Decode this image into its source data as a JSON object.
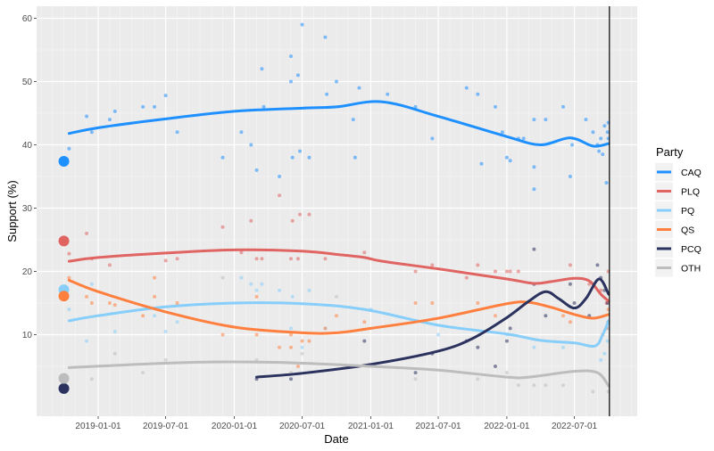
{
  "chart_data": {
    "type": "line",
    "xlabel": "Date",
    "ylabel": "Support (%)",
    "x_type": "date",
    "xlim": [
      "2018-07-20",
      "2022-12-17"
    ],
    "ylim": [
      -2.9,
      61.9
    ],
    "x_ticks": [
      "2019-01-01",
      "2019-07-01",
      "2020-01-01",
      "2020-07-01",
      "2021-01-01",
      "2021-07-01",
      "2022-01-01",
      "2022-07-01"
    ],
    "y_ticks": [
      10,
      20,
      30,
      40,
      50,
      60
    ],
    "grid": true,
    "legend": {
      "title": "Party",
      "position": "right"
    },
    "vline_date": "2022-10-03",
    "election_result_date": "2018-10-01",
    "series": [
      {
        "name": "CAQ",
        "color": "#1e90ff",
        "result": 37.4,
        "smooth": [
          [
            "2018-10-15",
            41.8
          ],
          [
            "2019-01-01",
            42.7
          ],
          [
            "2019-07-01",
            44.1
          ],
          [
            "2020-01-01",
            45.3
          ],
          [
            "2020-07-01",
            45.8
          ],
          [
            "2020-10-01",
            46.0
          ],
          [
            "2021-02-01",
            46.8
          ],
          [
            "2021-07-01",
            44.5
          ],
          [
            "2022-01-01",
            41.3
          ],
          [
            "2022-04-01",
            40.0
          ],
          [
            "2022-06-20",
            41.1
          ],
          [
            "2022-08-20",
            39.8
          ],
          [
            "2022-10-01",
            40.2
          ]
        ],
        "points": [
          [
            "2018-10-15",
            39.4
          ],
          [
            "2018-12-01",
            44.5
          ],
          [
            "2018-12-15",
            42
          ],
          [
            "2019-02-01",
            44
          ],
          [
            "2019-02-15",
            45.3
          ],
          [
            "2019-05-01",
            46
          ],
          [
            "2019-06-01",
            46
          ],
          [
            "2019-07-01",
            47.8
          ],
          [
            "2019-08-01",
            42
          ],
          [
            "2019-12-01",
            38
          ],
          [
            "2020-01-20",
            42
          ],
          [
            "2020-02-15",
            40
          ],
          [
            "2020-03-01",
            36
          ],
          [
            "2020-03-15",
            52
          ],
          [
            "2020-03-20",
            46
          ],
          [
            "2020-05-01",
            35
          ],
          [
            "2020-06-01",
            54
          ],
          [
            "2020-06-01",
            50
          ],
          [
            "2020-06-05",
            38
          ],
          [
            "2020-06-20",
            51
          ],
          [
            "2020-06-25",
            39
          ],
          [
            "2020-07-01",
            59
          ],
          [
            "2020-07-20",
            38
          ],
          [
            "2020-09-01",
            57
          ],
          [
            "2020-09-05",
            48
          ],
          [
            "2020-10-01",
            50
          ],
          [
            "2020-11-15",
            44
          ],
          [
            "2020-11-20",
            38
          ],
          [
            "2020-12-01",
            49
          ],
          [
            "2021-02-15",
            48
          ],
          [
            "2021-05-01",
            46
          ],
          [
            "2021-06-15",
            41
          ],
          [
            "2021-09-15",
            49
          ],
          [
            "2021-10-15",
            48
          ],
          [
            "2021-10-25",
            37
          ],
          [
            "2021-12-01",
            46
          ],
          [
            "2021-12-20",
            42
          ],
          [
            "2022-01-01",
            38
          ],
          [
            "2022-01-10",
            37.5
          ],
          [
            "2022-02-01",
            41
          ],
          [
            "2022-02-15",
            41
          ],
          [
            "2022-03-15",
            44
          ],
          [
            "2022-03-15",
            36.5
          ],
          [
            "2022-03-15",
            33
          ],
          [
            "2022-04-15",
            44
          ],
          [
            "2022-06-01",
            46
          ],
          [
            "2022-06-20",
            35
          ],
          [
            "2022-06-25",
            40
          ],
          [
            "2022-08-01",
            44
          ],
          [
            "2022-08-20",
            42
          ],
          [
            "2022-09-01",
            40
          ],
          [
            "2022-09-05",
            39
          ],
          [
            "2022-09-10",
            41
          ],
          [
            "2022-09-15",
            38.5
          ],
          [
            "2022-09-20",
            43
          ],
          [
            "2022-09-25",
            34
          ],
          [
            "2022-09-28",
            42
          ],
          [
            "2022-09-30",
            43.5
          ],
          [
            "2022-09-30",
            41
          ]
        ]
      },
      {
        "name": "PLQ",
        "color": "#e06462",
        "result": 24.8,
        "smooth": [
          [
            "2018-10-15",
            21.6
          ],
          [
            "2019-01-01",
            22.2
          ],
          [
            "2019-07-01",
            22.9
          ],
          [
            "2020-01-01",
            23.4
          ],
          [
            "2020-07-01",
            23.2
          ],
          [
            "2020-10-15",
            22.6
          ],
          [
            "2020-12-15",
            22.2
          ],
          [
            "2021-02-01",
            21.6
          ],
          [
            "2021-07-01",
            20.4
          ],
          [
            "2022-01-01",
            18.8
          ],
          [
            "2022-03-15",
            18.1
          ],
          [
            "2022-05-01",
            18.4
          ],
          [
            "2022-07-01",
            18.9
          ],
          [
            "2022-08-10",
            18.5
          ],
          [
            "2022-09-10",
            16.4
          ],
          [
            "2022-10-01",
            15.3
          ]
        ],
        "points": [
          [
            "2018-10-15",
            22.8
          ],
          [
            "2018-12-01",
            26
          ],
          [
            "2018-12-15",
            22
          ],
          [
            "2019-02-01",
            21
          ],
          [
            "2019-07-01",
            21.7
          ],
          [
            "2019-08-01",
            22
          ],
          [
            "2019-12-01",
            27
          ],
          [
            "2020-01-20",
            23
          ],
          [
            "2020-02-15",
            28
          ],
          [
            "2020-03-01",
            22
          ],
          [
            "2020-03-15",
            22
          ],
          [
            "2020-05-01",
            32
          ],
          [
            "2020-06-01",
            22
          ],
          [
            "2020-06-05",
            28
          ],
          [
            "2020-06-20",
            22
          ],
          [
            "2020-07-20",
            29
          ],
          [
            "2020-06-25",
            29
          ],
          [
            "2020-09-01",
            22
          ],
          [
            "2020-12-15",
            23
          ],
          [
            "2021-05-01",
            20
          ],
          [
            "2021-06-15",
            21
          ],
          [
            "2021-09-15",
            19
          ],
          [
            "2021-10-15",
            21
          ],
          [
            "2021-12-01",
            20
          ],
          [
            "2022-01-01",
            20
          ],
          [
            "2022-01-10",
            20
          ],
          [
            "2022-02-01",
            20
          ],
          [
            "2022-06-20",
            21
          ],
          [
            "2022-08-10",
            18
          ],
          [
            "2022-09-10",
            17
          ],
          [
            "2022-09-25",
            15
          ],
          [
            "2022-09-30",
            20
          ]
        ]
      },
      {
        "name": "PQ",
        "color": "#87cefa",
        "result": 17.1,
        "smooth": [
          [
            "2018-10-15",
            12.2
          ],
          [
            "2019-01-01",
            13.0
          ],
          [
            "2019-07-01",
            14.4
          ],
          [
            "2020-01-01",
            15.0
          ],
          [
            "2020-07-01",
            14.9
          ],
          [
            "2020-12-15",
            14.0
          ],
          [
            "2021-07-01",
            11.5
          ],
          [
            "2022-01-01",
            10.1
          ],
          [
            "2022-04-01",
            9.1
          ],
          [
            "2022-07-01",
            8.7
          ],
          [
            "2022-08-25",
            8.2
          ],
          [
            "2022-09-15",
            10.0
          ],
          [
            "2022-10-01",
            12.2
          ]
        ],
        "points": [
          [
            "2018-10-15",
            14
          ],
          [
            "2018-12-01",
            9
          ],
          [
            "2018-12-15",
            18
          ],
          [
            "2019-02-15",
            10.5
          ],
          [
            "2019-06-01",
            13
          ],
          [
            "2019-07-01",
            10.5
          ],
          [
            "2019-08-01",
            12
          ],
          [
            "2020-01-20",
            19
          ],
          [
            "2020-02-15",
            18
          ],
          [
            "2020-03-01",
            17
          ],
          [
            "2020-03-15",
            18
          ],
          [
            "2020-05-01",
            17
          ],
          [
            "2020-06-01",
            11
          ],
          [
            "2020-06-05",
            16
          ],
          [
            "2020-07-01",
            8
          ],
          [
            "2020-07-20",
            17
          ],
          [
            "2020-09-01",
            11
          ],
          [
            "2021-01-01",
            14
          ],
          [
            "2021-07-01",
            10
          ],
          [
            "2022-01-01",
            10
          ],
          [
            "2022-03-15",
            8
          ],
          [
            "2022-06-01",
            8
          ],
          [
            "2022-09-10",
            6
          ],
          [
            "2022-09-20",
            7
          ],
          [
            "2022-09-28",
            9
          ],
          [
            "2022-09-30",
            11
          ]
        ]
      },
      {
        "name": "QS",
        "color": "#ff7f3f",
        "result": 16.1,
        "smooth": [
          [
            "2018-10-15",
            18.6
          ],
          [
            "2019-01-01",
            16.8
          ],
          [
            "2019-07-01",
            13.6
          ],
          [
            "2020-01-01",
            11.2
          ],
          [
            "2020-07-01",
            10.3
          ],
          [
            "2020-10-01",
            10.3
          ],
          [
            "2021-01-01",
            11.0
          ],
          [
            "2021-07-01",
            12.6
          ],
          [
            "2022-01-01",
            14.9
          ],
          [
            "2022-03-01",
            15.1
          ],
          [
            "2022-05-01",
            14.3
          ],
          [
            "2022-07-01",
            13.2
          ],
          [
            "2022-08-20",
            12.6
          ],
          [
            "2022-10-01",
            13.2
          ]
        ],
        "points": [
          [
            "2018-10-15",
            19
          ],
          [
            "2018-12-01",
            16
          ],
          [
            "2018-12-15",
            15
          ],
          [
            "2019-02-01",
            15
          ],
          [
            "2019-02-15",
            14.7
          ],
          [
            "2019-05-01",
            13
          ],
          [
            "2019-06-01",
            19
          ],
          [
            "2019-06-01",
            16
          ],
          [
            "2019-08-01",
            15
          ],
          [
            "2019-12-01",
            10
          ],
          [
            "2020-03-01",
            16
          ],
          [
            "2020-03-01",
            10
          ],
          [
            "2020-05-01",
            8
          ],
          [
            "2020-06-01",
            8
          ],
          [
            "2020-06-01",
            10
          ],
          [
            "2020-06-20",
            5
          ],
          [
            "2020-07-01",
            9
          ],
          [
            "2020-07-20",
            9
          ],
          [
            "2020-09-01",
            11
          ],
          [
            "2020-10-01",
            13
          ],
          [
            "2020-12-15",
            12
          ],
          [
            "2021-05-01",
            15
          ],
          [
            "2021-06-15",
            15
          ],
          [
            "2021-10-15",
            15
          ],
          [
            "2021-12-01",
            13
          ],
          [
            "2022-06-01",
            13
          ],
          [
            "2022-06-20",
            12
          ],
          [
            "2022-09-15",
            10
          ],
          [
            "2022-09-25",
            11
          ],
          [
            "2022-09-30",
            14
          ]
        ]
      },
      {
        "name": "PCQ",
        "color": "#2b325e",
        "result": 1.5,
        "smooth": [
          [
            "2020-03-01",
            3.3
          ],
          [
            "2020-07-01",
            3.9
          ],
          [
            "2021-01-01",
            5.3
          ],
          [
            "2021-07-01",
            7.4
          ],
          [
            "2021-10-01",
            9.4
          ],
          [
            "2022-01-01",
            12.7
          ],
          [
            "2022-03-01",
            15.3
          ],
          [
            "2022-04-15",
            16.8
          ],
          [
            "2022-05-20",
            15.7
          ],
          [
            "2022-07-01",
            14.2
          ],
          [
            "2022-08-01",
            15.7
          ],
          [
            "2022-09-05",
            18.8
          ],
          [
            "2022-10-01",
            16.4
          ]
        ],
        "points": [
          [
            "2020-03-01",
            3
          ],
          [
            "2020-06-01",
            3
          ],
          [
            "2020-12-15",
            9
          ],
          [
            "2021-05-01",
            4
          ],
          [
            "2021-06-15",
            7
          ],
          [
            "2021-09-15",
            9
          ],
          [
            "2021-10-15",
            8
          ],
          [
            "2021-12-01",
            5
          ],
          [
            "2022-01-01",
            9
          ],
          [
            "2022-01-10",
            11
          ],
          [
            "2022-03-15",
            23.5
          ],
          [
            "2022-03-15",
            18
          ],
          [
            "2022-04-15",
            13
          ],
          [
            "2022-06-20",
            18
          ],
          [
            "2022-07-01",
            15
          ],
          [
            "2022-08-10",
            13
          ],
          [
            "2022-09-01",
            21
          ],
          [
            "2022-09-10",
            19
          ],
          [
            "2022-09-20",
            17
          ],
          [
            "2022-09-28",
            15
          ],
          [
            "2022-09-30",
            12
          ]
        ]
      },
      {
        "name": "OTH",
        "color": "#bdbdbd",
        "result": 3.1,
        "smooth": [
          [
            "2018-10-15",
            4.8
          ],
          [
            "2019-07-01",
            5.5
          ],
          [
            "2020-01-01",
            5.7
          ],
          [
            "2020-07-01",
            5.5
          ],
          [
            "2021-01-01",
            5.0
          ],
          [
            "2021-07-01",
            4.4
          ],
          [
            "2022-01-01",
            3.3
          ],
          [
            "2022-03-01",
            3.3
          ],
          [
            "2022-07-01",
            4.2
          ],
          [
            "2022-09-01",
            4.0
          ],
          [
            "2022-10-01",
            1.9
          ]
        ],
        "points": [
          [
            "2018-12-15",
            3
          ],
          [
            "2019-02-15",
            7
          ],
          [
            "2019-05-01",
            4
          ],
          [
            "2019-07-01",
            6
          ],
          [
            "2019-12-01",
            19
          ],
          [
            "2020-03-01",
            6
          ],
          [
            "2020-06-01",
            4
          ],
          [
            "2020-07-01",
            7
          ],
          [
            "2020-10-01",
            16
          ],
          [
            "2021-05-01",
            3
          ],
          [
            "2021-10-15",
            3
          ],
          [
            "2022-01-01",
            4
          ],
          [
            "2022-02-01",
            2
          ],
          [
            "2022-03-15",
            2
          ],
          [
            "2022-04-15",
            2
          ],
          [
            "2022-06-01",
            2
          ],
          [
            "2022-08-20",
            1
          ],
          [
            "2022-09-30",
            1
          ]
        ]
      }
    ]
  }
}
